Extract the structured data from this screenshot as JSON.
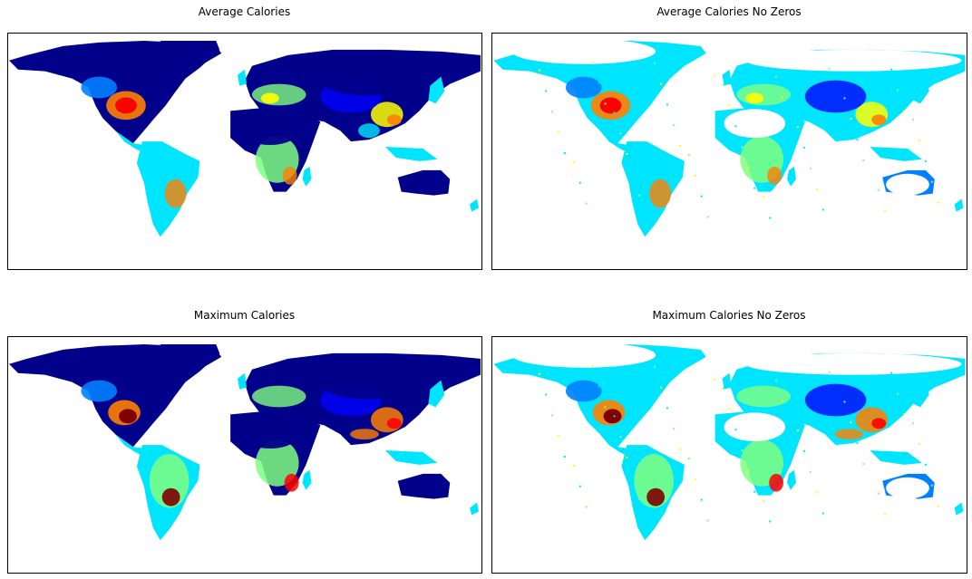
{
  "panels": [
    {
      "title": "Average Calories",
      "variant": "average",
      "zeros_shown": true
    },
    {
      "title": "Average Calories No Zeros",
      "variant": "average",
      "zeros_shown": false
    },
    {
      "title": "Maximum Calories",
      "variant": "maximum",
      "zeros_shown": true
    },
    {
      "title": "Maximum Calories No Zeros",
      "variant": "maximum",
      "zeros_shown": false
    }
  ],
  "colormap": [
    "#00008b",
    "#0000ff",
    "#0080ff",
    "#00e5ff",
    "#7fff7f",
    "#ffff00",
    "#ff8000",
    "#ff0000",
    "#800000"
  ],
  "background_color": "#ffffff"
}
